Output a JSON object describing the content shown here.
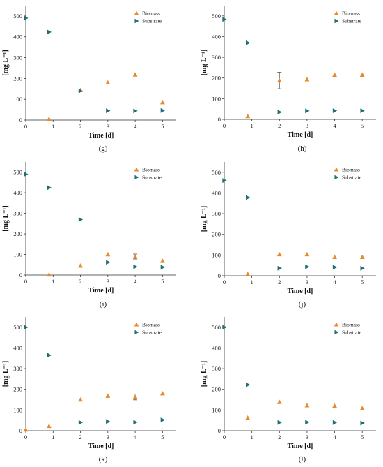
{
  "colors": {
    "biomass": "#e8892b",
    "substrate": "#1f6f73",
    "axis": "#333333"
  },
  "chart_data": [
    {
      "type": "scatter",
      "panel_label": "(g)",
      "xlabel": "Time [d]",
      "ylabel": "[mg L⁻¹]",
      "xlim": [
        0,
        5.5
      ],
      "ylim": [
        0,
        550
      ],
      "xticks": [
        0,
        1,
        2,
        3,
        4,
        5
      ],
      "yticks": [
        0,
        100,
        200,
        300,
        400,
        500
      ],
      "grid": false,
      "legend": "top-right",
      "series": [
        {
          "name": "Biomass",
          "marker": "triangle-up",
          "points": [
            {
              "x": 0.85,
              "y": 5
            },
            {
              "x": 2,
              "y": 143
            },
            {
              "x": 3,
              "y": 180
            },
            {
              "x": 4,
              "y": 218
            },
            {
              "x": 5,
              "y": 85
            }
          ]
        },
        {
          "name": "Substrate",
          "marker": "triangle-right",
          "points": [
            {
              "x": 0,
              "y": 490
            },
            {
              "x": 0.85,
              "y": 423
            },
            {
              "x": 2,
              "y": 140
            },
            {
              "x": 3,
              "y": 45
            },
            {
              "x": 4,
              "y": 44
            },
            {
              "x": 5,
              "y": 46
            }
          ]
        }
      ]
    },
    {
      "type": "scatter",
      "panel_label": "(h)",
      "xlabel": "Time [d]",
      "ylabel": "[mg L⁻¹]",
      "xlim": [
        0,
        5.5
      ],
      "ylim": [
        0,
        550
      ],
      "xticks": [
        0,
        1,
        2,
        3,
        4,
        5
      ],
      "yticks": [
        0,
        100,
        200,
        300,
        400,
        500
      ],
      "grid": false,
      "legend": "top-right",
      "series": [
        {
          "name": "Biomass",
          "marker": "triangle-up",
          "points": [
            {
              "x": 0.85,
              "y": 15
            },
            {
              "x": 2,
              "y": 188,
              "err": 40
            },
            {
              "x": 3,
              "y": 193
            },
            {
              "x": 4,
              "y": 215
            },
            {
              "x": 5,
              "y": 215
            }
          ]
        },
        {
          "name": "Substrate",
          "marker": "triangle-right",
          "points": [
            {
              "x": 0,
              "y": 483
            },
            {
              "x": 0.85,
              "y": 370
            },
            {
              "x": 2,
              "y": 35
            },
            {
              "x": 3,
              "y": 41
            },
            {
              "x": 4,
              "y": 42
            },
            {
              "x": 5,
              "y": 42
            }
          ]
        }
      ]
    },
    {
      "type": "scatter",
      "panel_label": "(i)",
      "xlabel": "Time [d]",
      "ylabel": "[mg L⁻¹]",
      "xlim": [
        0,
        5.5
      ],
      "ylim": [
        0,
        550
      ],
      "xticks": [
        0,
        1,
        2,
        3,
        4,
        5
      ],
      "yticks": [
        0,
        100,
        200,
        300,
        400,
        500
      ],
      "grid": false,
      "legend": "top-right",
      "series": [
        {
          "name": "Biomass",
          "marker": "triangle-up",
          "points": [
            {
              "x": 0.85,
              "y": 2
            },
            {
              "x": 2,
              "y": 45
            },
            {
              "x": 3,
              "y": 100
            },
            {
              "x": 4,
              "y": 90,
              "err": 12
            },
            {
              "x": 5,
              "y": 68
            }
          ]
        },
        {
          "name": "Substrate",
          "marker": "triangle-right",
          "points": [
            {
              "x": 0,
              "y": 490
            },
            {
              "x": 0.85,
              "y": 425
            },
            {
              "x": 2,
              "y": 270
            },
            {
              "x": 3,
              "y": 62
            },
            {
              "x": 4,
              "y": 40
            },
            {
              "x": 5,
              "y": 38
            }
          ]
        }
      ]
    },
    {
      "type": "scatter",
      "panel_label": "(j)",
      "xlabel": "Time [d]",
      "ylabel": "[mg L⁻¹]",
      "xlim": [
        0,
        5.5
      ],
      "ylim": [
        0,
        550
      ],
      "xticks": [
        0,
        1,
        2,
        3,
        4,
        5
      ],
      "yticks": [
        0,
        100,
        200,
        300,
        400,
        500
      ],
      "grid": false,
      "legend": "top-right",
      "series": [
        {
          "name": "Biomass",
          "marker": "triangle-up",
          "points": [
            {
              "x": 0.85,
              "y": 8
            },
            {
              "x": 2,
              "y": 103
            },
            {
              "x": 3,
              "y": 103
            },
            {
              "x": 4,
              "y": 90
            },
            {
              "x": 5,
              "y": 90
            }
          ]
        },
        {
          "name": "Substrate",
          "marker": "triangle-right",
          "points": [
            {
              "x": 0,
              "y": 460
            },
            {
              "x": 0.85,
              "y": 378
            },
            {
              "x": 2,
              "y": 36
            },
            {
              "x": 3,
              "y": 43
            },
            {
              "x": 4,
              "y": 41
            },
            {
              "x": 5,
              "y": 36
            }
          ]
        }
      ]
    },
    {
      "type": "scatter",
      "panel_label": "(k)",
      "xlabel": "Time [d]",
      "ylabel": "[mg L⁻¹]",
      "xlim": [
        0,
        5.5
      ],
      "ylim": [
        0,
        550
      ],
      "xticks": [
        0,
        1,
        2,
        3,
        4,
        5
      ],
      "yticks": [
        0,
        100,
        200,
        300,
        400,
        500
      ],
      "grid": false,
      "legend": "top-right",
      "series": [
        {
          "name": "Biomass",
          "marker": "triangle-up",
          "points": [
            {
              "x": 0,
              "y": 5
            },
            {
              "x": 0.85,
              "y": 22
            },
            {
              "x": 2,
              "y": 150
            },
            {
              "x": 3,
              "y": 168
            },
            {
              "x": 4,
              "y": 163,
              "err": 14
            },
            {
              "x": 5,
              "y": 180
            }
          ]
        },
        {
          "name": "Substrate",
          "marker": "triangle-right",
          "points": [
            {
              "x": 0,
              "y": 500
            },
            {
              "x": 0.85,
              "y": 365
            },
            {
              "x": 2,
              "y": 40
            },
            {
              "x": 3,
              "y": 44
            },
            {
              "x": 4,
              "y": 41
            },
            {
              "x": 5,
              "y": 52
            }
          ]
        }
      ]
    },
    {
      "type": "scatter",
      "panel_label": "(l)",
      "xlabel": "Time [d]",
      "ylabel": "[mg L⁻¹]",
      "xlim": [
        0,
        5.5
      ],
      "ylim": [
        0,
        550
      ],
      "xticks": [
        0,
        1,
        2,
        3,
        4,
        5
      ],
      "yticks": [
        0,
        100,
        200,
        300,
        400,
        500
      ],
      "grid": false,
      "legend": "top-right",
      "series": [
        {
          "name": "Biomass",
          "marker": "triangle-up",
          "points": [
            {
              "x": 0.85,
              "y": 62
            },
            {
              "x": 2,
              "y": 138
            },
            {
              "x": 3,
              "y": 122
            },
            {
              "x": 4,
              "y": 120
            },
            {
              "x": 5,
              "y": 108
            }
          ]
        },
        {
          "name": "Substrate",
          "marker": "triangle-right",
          "points": [
            {
              "x": 0,
              "y": 500
            },
            {
              "x": 0.85,
              "y": 222
            },
            {
              "x": 2,
              "y": 40
            },
            {
              "x": 3,
              "y": 41
            },
            {
              "x": 4,
              "y": 40
            },
            {
              "x": 5,
              "y": 37
            }
          ]
        }
      ]
    }
  ]
}
